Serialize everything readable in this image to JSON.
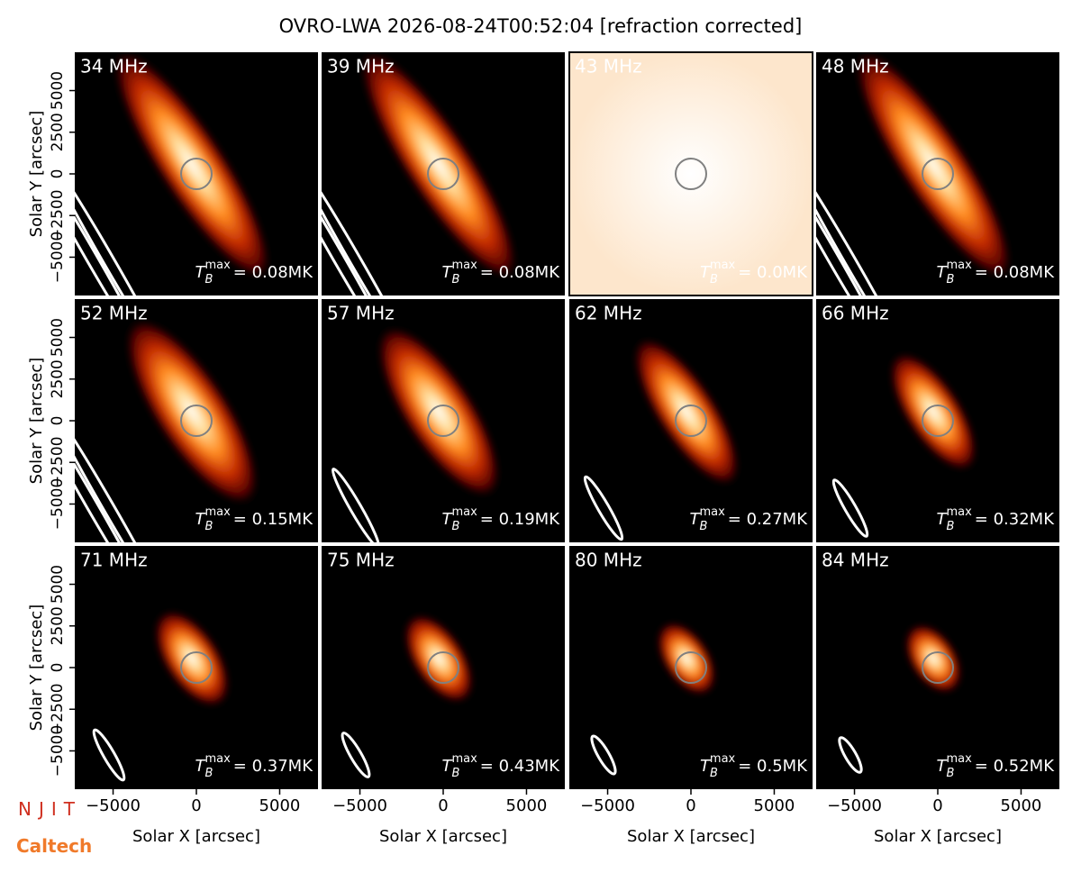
{
  "chart_data": {
    "type": "image-grid",
    "title": "OVRO-LWA 2026-08-24T00:52:04 [refraction corrected]",
    "xlabel": "Solar X [arcsec]",
    "ylabel": "Solar Y [arcsec]",
    "xlim": [
      -7300,
      7300
    ],
    "ylim": [
      -7300,
      7300
    ],
    "xticks": [
      {
        "value": -5000,
        "label": "−5000"
      },
      0,
      5000
    ],
    "yticks": [
      {
        "value": -5000,
        "label": "−5000"
      },
      {
        "value": -2500,
        "label": "−2500"
      },
      0,
      2500,
      5000
    ],
    "tb_symbol": {
      "base": "T",
      "sub": "B",
      "sup": "max"
    },
    "panels": [
      {
        "label": "34 MHz",
        "tb_max": "= 0.08MK"
      },
      {
        "label": "39 MHz",
        "tb_max": "= 0.08MK"
      },
      {
        "label": "43 MHz",
        "tb_max": "= 0.0MK"
      },
      {
        "label": "48 MHz",
        "tb_max": "= 0.08MK"
      },
      {
        "label": "52 MHz",
        "tb_max": "= 0.15MK"
      },
      {
        "label": "57 MHz",
        "tb_max": "= 0.19MK"
      },
      {
        "label": "62 MHz",
        "tb_max": "= 0.27MK"
      },
      {
        "label": "66 MHz",
        "tb_max": "= 0.32MK"
      },
      {
        "label": "71 MHz",
        "tb_max": "= 0.37MK"
      },
      {
        "label": "75 MHz",
        "tb_max": "= 0.43MK"
      },
      {
        "label": "80 MHz",
        "tb_max": "= 0.5MK"
      },
      {
        "label": "84 MHz",
        "tb_max": "= 0.52MK"
      }
    ]
  },
  "logos": [
    "NJIT",
    "Caltech"
  ]
}
